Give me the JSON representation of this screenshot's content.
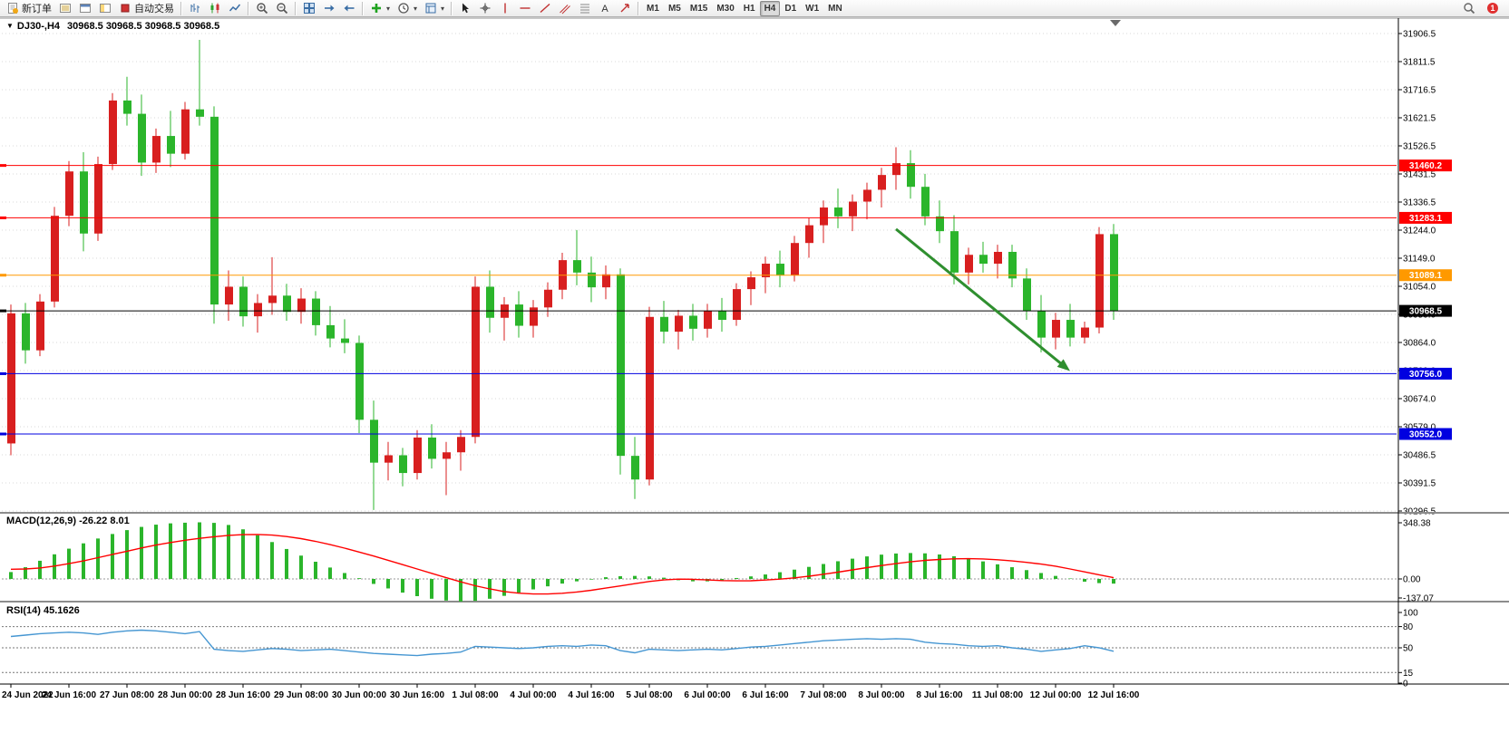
{
  "toolbar": {
    "new_order_label": "新订单",
    "auto_trading_label": "自动交易",
    "timeframes": [
      "M1",
      "M5",
      "M15",
      "M30",
      "H1",
      "H4",
      "D1",
      "W1",
      "MN"
    ],
    "active_timeframe": "H4",
    "groups": [
      {
        "items": [
          {
            "name": "new-order-button",
            "icon": "new-order-icon",
            "label": "新订单"
          },
          {
            "name": "market-watch-button",
            "icon": "market-watch-icon"
          },
          {
            "name": "data-window-button",
            "icon": "data-window-icon"
          },
          {
            "name": "navigator-button",
            "icon": "navigator-icon"
          },
          {
            "name": "auto-trading-button",
            "icon": "auto-trading-icon",
            "label": "自动交易"
          }
        ]
      },
      {
        "items": [
          {
            "name": "bar-chart-button",
            "icon": "bar-chart-icon"
          },
          {
            "name": "candlestick-chart-button",
            "icon": "candlestick-chart-icon"
          },
          {
            "name": "line-chart-button",
            "icon": "line-chart-icon"
          }
        ]
      },
      {
        "items": [
          {
            "name": "zoom-in-button",
            "icon": "zoom-in-icon"
          },
          {
            "name": "zoom-out-button",
            "icon": "zoom-out-icon"
          }
        ]
      },
      {
        "items": [
          {
            "name": "tile-windows-button",
            "icon": "tile-windows-icon"
          },
          {
            "name": "auto-scroll-button",
            "icon": "auto-scroll-icon"
          },
          {
            "name": "chart-shift-button",
            "icon": "chart-shift-icon"
          }
        ]
      },
      {
        "items": [
          {
            "name": "indicators-button",
            "icon": "indicators-icon",
            "dropdown": true
          },
          {
            "name": "periods-button",
            "icon": "periods-icon",
            "dropdown": true
          },
          {
            "name": "templates-button",
            "icon": "templates-icon",
            "dropdown": true
          }
        ]
      },
      {
        "items": [
          {
            "name": "cursor-button",
            "icon": "cursor-icon"
          },
          {
            "name": "crosshair-button",
            "icon": "crosshair-icon"
          },
          {
            "name": "vertical-line-button",
            "icon": "vertical-line-icon"
          },
          {
            "name": "horizontal-line-button",
            "icon": "horizontal-line-icon"
          },
          {
            "name": "trendline-button",
            "icon": "trendline-icon"
          },
          {
            "name": "channel-button",
            "icon": "channel-icon"
          },
          {
            "name": "fibonacci-button",
            "icon": "fibonacci-icon"
          },
          {
            "name": "text-button",
            "icon": "text-icon"
          },
          {
            "name": "arrows-button",
            "icon": "arrows-icon"
          }
        ]
      }
    ],
    "right_items": [
      {
        "name": "search-button",
        "icon": "search-icon"
      },
      {
        "name": "notification-button",
        "icon": "notification-icon",
        "badge": "1"
      }
    ]
  },
  "chart_header": {
    "dropdown_marker": "▼",
    "symbol_title": "DJ30-,H4",
    "ohlc_text": "30968.5 30968.5 30968.5 30968.5"
  },
  "colors": {
    "up": "#D81F1F",
    "down": "#2BB52B",
    "macd_hist": "#2BB52B",
    "macd_signal": "#FF0000",
    "rsi_line": "#4596D2",
    "arrow": "#2F8F2F",
    "grid": "#D8D8D8",
    "level_red": "#FF0000",
    "level_orange": "#FF9900",
    "level_blue": "#0000E0",
    "price_line": "#000000"
  },
  "chart_data": [
    {
      "type": "candlestick",
      "symbol": "DJ30-",
      "timeframe": "H4",
      "title": "DJ30-,H4 30968.5 30968.5 30968.5 30968.5",
      "price_axis_labels": [
        "31906.5",
        "31811.5",
        "31716.5",
        "31621.5",
        "31526.5",
        "31431.5",
        "31336.5",
        "31244.0",
        "31149.0",
        "31054.0",
        "30959.0",
        "30864.0",
        "30769.0",
        "30674.0",
        "30579.0",
        "30486.5",
        "30391.5",
        "30296.5"
      ],
      "time_axis_labels": [
        {
          "index": 0,
          "label": "24 Jun 2022"
        },
        {
          "index": 4,
          "label": "24 Jun 16:00"
        },
        {
          "index": 8,
          "label": "27 Jun 08:00"
        },
        {
          "index": 12,
          "label": "28 Jun 00:00"
        },
        {
          "index": 16,
          "label": "28 Jun 16:00"
        },
        {
          "index": 20,
          "label": "29 Jun 08:00"
        },
        {
          "index": 24,
          "label": "30 Jun 00:00"
        },
        {
          "index": 28,
          "label": "30 Jun 16:00"
        },
        {
          "index": 32,
          "label": "1 Jul 08:00"
        },
        {
          "index": 36,
          "label": "4 Jul 00:00"
        },
        {
          "index": 40,
          "label": "4 Jul 16:00"
        },
        {
          "index": 44,
          "label": "5 Jul 08:00"
        },
        {
          "index": 48,
          "label": "6 Jul 00:00"
        },
        {
          "index": 52,
          "label": "6 Jul 16:00"
        },
        {
          "index": 56,
          "label": "7 Jul 08:00"
        },
        {
          "index": 60,
          "label": "8 Jul 00:00"
        },
        {
          "index": 64,
          "label": "8 Jul 16:00"
        },
        {
          "index": 68,
          "label": "11 Jul 08:00"
        },
        {
          "index": 72,
          "label": "12 Jul 00:00"
        },
        {
          "index": 76,
          "label": "12 Jul 16:00"
        }
      ],
      "hlines": [
        {
          "price": 31460.2,
          "label": "31460.2",
          "color_key": "level_red"
        },
        {
          "price": 31283.1,
          "label": "31283.1",
          "color_key": "level_red"
        },
        {
          "price": 31089.1,
          "label": "31089.1",
          "color_key": "level_orange"
        },
        {
          "price": 30968.5,
          "label": "30968.5",
          "color_key": "price_line",
          "current": true
        },
        {
          "price": 30756.0,
          "label": "30756.0",
          "color_key": "level_blue"
        },
        {
          "price": 30552.0,
          "label": "30552.0",
          "color_key": "level_blue"
        }
      ],
      "trend_arrow": {
        "from_index": 61,
        "from_price": 31245,
        "to_index": 73,
        "to_price": 30765,
        "color_key": "arrow"
      },
      "candles": [
        [
          30520,
          30990,
          30480,
          30960
        ],
        [
          30960,
          30995,
          30790,
          30835
        ],
        [
          30835,
          31025,
          30815,
          31000
        ],
        [
          31000,
          31320,
          30980,
          31290
        ],
        [
          31290,
          31475,
          31255,
          31440
        ],
        [
          31440,
          31505,
          31170,
          31230
        ],
        [
          31230,
          31490,
          31205,
          31465
        ],
        [
          31465,
          31705,
          31445,
          31680
        ],
        [
          31680,
          31760,
          31595,
          31635
        ],
        [
          31635,
          31700,
          31425,
          31470
        ],
        [
          31470,
          31585,
          31435,
          31560
        ],
        [
          31560,
          31645,
          31455,
          31500
        ],
        [
          31500,
          31675,
          31480,
          31650
        ],
        [
          31650,
          31885,
          31595,
          31625
        ],
        [
          31625,
          31660,
          30925,
          30990
        ],
        [
          30990,
          31105,
          30935,
          31050
        ],
        [
          31050,
          31085,
          30915,
          30950
        ],
        [
          30950,
          31025,
          30895,
          30995
        ],
        [
          30995,
          31150,
          30955,
          31020
        ],
        [
          31020,
          31060,
          30935,
          30965
        ],
        [
          30965,
          31045,
          30925,
          31010
        ],
        [
          31010,
          31035,
          30885,
          30920
        ],
        [
          30920,
          30985,
          30845,
          30875
        ],
        [
          30875,
          30940,
          30825,
          30860
        ],
        [
          30860,
          30885,
          30555,
          30600
        ],
        [
          30600,
          30665,
          30295,
          30455
        ],
        [
          30455,
          30525,
          30395,
          30480
        ],
        [
          30480,
          30505,
          30375,
          30420
        ],
        [
          30420,
          30565,
          30398,
          30540
        ],
        [
          30540,
          30585,
          30435,
          30468
        ],
        [
          30468,
          30525,
          30345,
          30490
        ],
        [
          30490,
          30565,
          30428,
          30542
        ],
        [
          30542,
          31085,
          30520,
          31050
        ],
        [
          31050,
          31105,
          30895,
          30945
        ],
        [
          30945,
          31015,
          30868,
          30990
        ],
        [
          30990,
          31035,
          30878,
          30918
        ],
        [
          30918,
          31005,
          30878,
          30980
        ],
        [
          30980,
          31065,
          30948,
          31040
        ],
        [
          31040,
          31165,
          31008,
          31140
        ],
        [
          31140,
          31242,
          31055,
          31098
        ],
        [
          31098,
          31152,
          30998,
          31048
        ],
        [
          31048,
          31122,
          31008,
          31092
        ],
        [
          31092,
          31112,
          30415,
          30478
        ],
        [
          30478,
          30542,
          30332,
          30398
        ],
        [
          30398,
          30982,
          30378,
          30948
        ],
        [
          30948,
          31002,
          30858,
          30898
        ],
        [
          30898,
          30972,
          30838,
          30952
        ],
        [
          30952,
          30992,
          30868,
          30908
        ],
        [
          30908,
          30992,
          30878,
          30968
        ],
        [
          30968,
          31012,
          30898,
          30938
        ],
        [
          30938,
          31062,
          30918,
          31042
        ],
        [
          31042,
          31102,
          30988,
          31082
        ],
        [
          31082,
          31152,
          31028,
          31128
        ],
        [
          31128,
          31172,
          31048,
          31088
        ],
        [
          31088,
          31222,
          31068,
          31198
        ],
        [
          31198,
          31282,
          31148,
          31258
        ],
        [
          31258,
          31342,
          31198,
          31318
        ],
        [
          31318,
          31382,
          31248,
          31288
        ],
        [
          31288,
          31362,
          31238,
          31338
        ],
        [
          31338,
          31402,
          31278,
          31378
        ],
        [
          31378,
          31452,
          31318,
          31428
        ],
        [
          31428,
          31522,
          31378,
          31468
        ],
        [
          31468,
          31512,
          31348,
          31388
        ],
        [
          31388,
          31432,
          31258,
          31288
        ],
        [
          31288,
          31342,
          31198,
          31238
        ],
        [
          31238,
          31292,
          31058,
          31098
        ],
        [
          31098,
          31182,
          31058,
          31158
        ],
        [
          31158,
          31202,
          31098,
          31128
        ],
        [
          31128,
          31192,
          31078,
          31168
        ],
        [
          31168,
          31192,
          31048,
          31078
        ],
        [
          31078,
          31112,
          30938,
          30968
        ],
        [
          30968,
          31022,
          30828,
          30878
        ],
        [
          30878,
          30962,
          30838,
          30938
        ],
        [
          30938,
          30992,
          30848,
          30878
        ],
        [
          30878,
          30932,
          30858,
          30912
        ],
        [
          30912,
          31252,
          30892,
          31228
        ],
        [
          31228,
          31262,
          30938,
          30968.5
        ]
      ]
    },
    {
      "type": "macd",
      "label": "MACD(12,26,9) -26.22 8.01",
      "fast": 12,
      "slow": 26,
      "signal_period": 9,
      "current_macd": -26.22,
      "current_signal": 8.01,
      "scale_labels": [
        "348.38",
        "0.00",
        "-137.07"
      ],
      "histogram": [
        40,
        70,
        110,
        150,
        185,
        218,
        248,
        276,
        300,
        320,
        334,
        342,
        346,
        348.38,
        345,
        332,
        305,
        268,
        226,
        183,
        142,
        104,
        68,
        34,
        2,
        -28,
        -56,
        -82,
        -104,
        -120,
        -131,
        -137.07,
        -133,
        -120,
        -102,
        -82,
        -62,
        -43,
        -26,
        -12,
        -1,
        8,
        14,
        16,
        13,
        5,
        -5,
        -12,
        -12,
        -6,
        3,
        13,
        25,
        39,
        55,
        72,
        90,
        107,
        123,
        137,
        148,
        155,
        158,
        156,
        149,
        138,
        123,
        106,
        88,
        70,
        52,
        34,
        16,
        0,
        -14,
        -23,
        -26.22
      ],
      "signal": [
        60,
        62,
        68,
        80,
        95,
        112,
        132,
        152,
        172,
        192,
        210,
        226,
        240,
        252,
        262,
        270,
        275,
        276,
        272,
        263,
        250,
        233,
        213,
        191,
        167,
        142,
        116,
        89,
        62,
        35,
        8,
        -18,
        -42,
        -62,
        -78,
        -88,
        -93,
        -93,
        -89,
        -81,
        -70,
        -57,
        -43,
        -29,
        -16,
        -6,
        -1,
        -2,
        -6,
        -10,
        -12,
        -11,
        -7,
        -1,
        7,
        17,
        29,
        42,
        56,
        70,
        83,
        95,
        106,
        115,
        121,
        125,
        126,
        124,
        119,
        112,
        103,
        92,
        79,
        62,
        44,
        26,
        8.01
      ]
    },
    {
      "type": "rsi",
      "label": "RSI(14) 45.1626",
      "period": 14,
      "current": 45.1626,
      "scale_labels": [
        "100",
        "80",
        "50",
        "15",
        "0"
      ],
      "levels": [
        80,
        50,
        15
      ],
      "values": [
        66,
        68,
        70,
        71,
        72,
        71,
        69,
        72,
        74,
        75,
        74,
        72,
        70,
        73,
        48,
        46,
        45,
        47,
        49,
        48,
        46,
        47,
        48,
        46,
        44,
        42,
        41,
        40,
        39,
        41,
        42,
        44,
        52,
        51,
        50,
        49,
        50,
        52,
        53,
        52,
        54,
        53,
        46,
        43,
        48,
        47,
        46,
        47,
        48,
        47,
        49,
        51,
        52,
        54,
        56,
        58,
        60,
        61,
        62,
        63,
        62,
        63,
        62,
        58,
        56,
        55,
        53,
        52,
        53,
        50,
        48,
        45,
        47,
        49,
        53,
        50,
        45.16
      ]
    }
  ]
}
